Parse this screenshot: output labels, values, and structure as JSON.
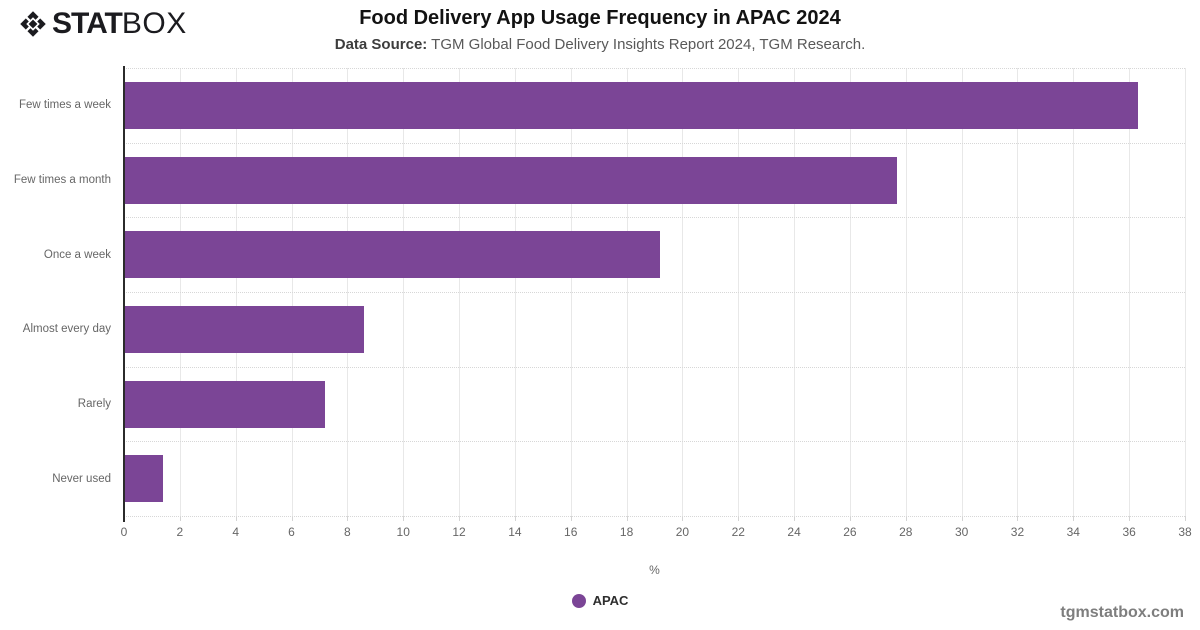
{
  "logo": {
    "icon": "statbox-diamond-icon",
    "stat": "STAT",
    "box": "BOX"
  },
  "header": {
    "title": "Food Delivery App Usage Frequency in APAC 2024",
    "subtitle_label": "Data Source:",
    "subtitle_text": " TGM Global Food Delivery Insights Report 2024, TGM Research."
  },
  "chart_data": {
    "type": "bar",
    "orientation": "horizontal",
    "title": "Food Delivery App Usage Frequency in APAC 2024",
    "categories": [
      "Few times a week",
      "Few times a month",
      "Once a week",
      "Almost every day",
      "Rarely",
      "Never used"
    ],
    "series": [
      {
        "name": "APAC",
        "values": [
          36.3,
          27.7,
          19.2,
          8.6,
          7.2,
          1.4
        ]
      }
    ],
    "xlabel": "%",
    "ylabel": "",
    "xlim": [
      0,
      38
    ],
    "xticks": [
      0,
      2,
      4,
      6,
      8,
      10,
      12,
      14,
      16,
      18,
      20,
      22,
      24,
      26,
      28,
      30,
      32,
      34,
      36,
      38
    ],
    "bar_color": "#7b4596",
    "gridline_color": "#e8e8e8",
    "grid": "vertical-solid, horizontal-dotted-row-dividers",
    "legend_position": "bottom-center"
  },
  "legend": {
    "label": "APAC",
    "color": "#7b4596"
  },
  "footer": {
    "watermark": "tgmstatbox.com"
  }
}
